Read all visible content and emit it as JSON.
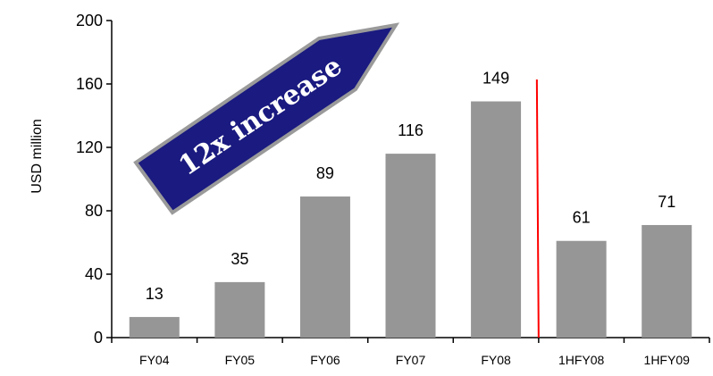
{
  "chart_data": {
    "type": "bar",
    "title": "",
    "xlabel": "",
    "ylabel": "USD million",
    "categories": [
      "FY04",
      "FY05",
      "FY06",
      "FY07",
      "FY08",
      "1HFY08",
      "1HFY09"
    ],
    "values": [
      13,
      35,
      89,
      116,
      149,
      61,
      71
    ],
    "data_labels": [
      "13",
      "35",
      "89",
      "116",
      "149",
      "61",
      "71"
    ],
    "ylim": [
      0,
      200
    ],
    "yticks": [
      0,
      40,
      80,
      120,
      160,
      200
    ],
    "grid": false,
    "legend": "none",
    "separator_after_category": "FY08",
    "annotation": "12x increase"
  },
  "colors": {
    "bar": "#969696",
    "separator": "#ff0000",
    "arrow_fill": "#1a1a80",
    "arrow_outline": "#9a9a9a",
    "axis": "#000000"
  }
}
